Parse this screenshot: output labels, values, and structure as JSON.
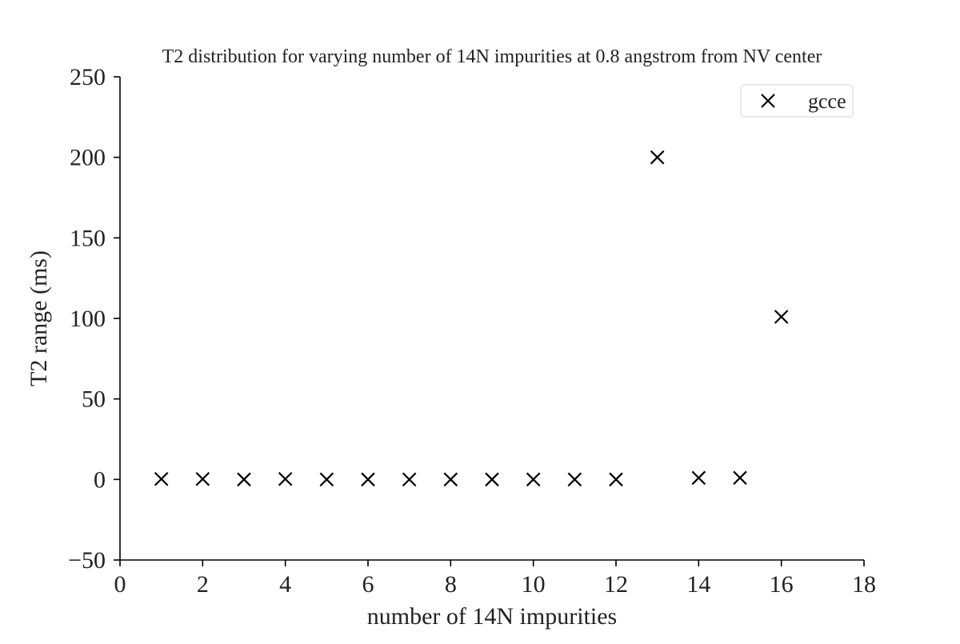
{
  "chart_data": {
    "type": "scatter",
    "title": "T2 distribution for varying number of 14N impurities at 0.8 angstrom from NV center",
    "xlabel": "number of 14N impurities",
    "ylabel": "T2 range (ms)",
    "xlim": [
      0,
      18
    ],
    "ylim": [
      -50,
      250
    ],
    "xticks": [
      0,
      2,
      4,
      6,
      8,
      10,
      12,
      14,
      16,
      18
    ],
    "yticks": [
      -50,
      0,
      50,
      100,
      150,
      200,
      250
    ],
    "xtick_labels": [
      "0",
      "2",
      "4",
      "6",
      "8",
      "10",
      "12",
      "14",
      "16",
      "18"
    ],
    "ytick_labels": [
      "−50",
      "0",
      "50",
      "100",
      "150",
      "200",
      "250"
    ],
    "grid": false,
    "legend": {
      "placement": "top-right",
      "entries": [
        "gcce"
      ]
    },
    "series": [
      {
        "name": "gcce",
        "marker": "x",
        "color": "#000000",
        "x": [
          1,
          2,
          3,
          4,
          5,
          6,
          7,
          8,
          9,
          10,
          11,
          12,
          13,
          14,
          15,
          16
        ],
        "y": [
          0.3,
          0.3,
          0,
          0.3,
          0,
          0,
          0,
          0,
          0,
          0,
          0,
          0,
          200,
          1,
          1,
          101
        ]
      }
    ]
  },
  "colors": {
    "axis": "#000000",
    "text": "#222222",
    "marker": "#000000",
    "legend_border": "#dddddd"
  }
}
